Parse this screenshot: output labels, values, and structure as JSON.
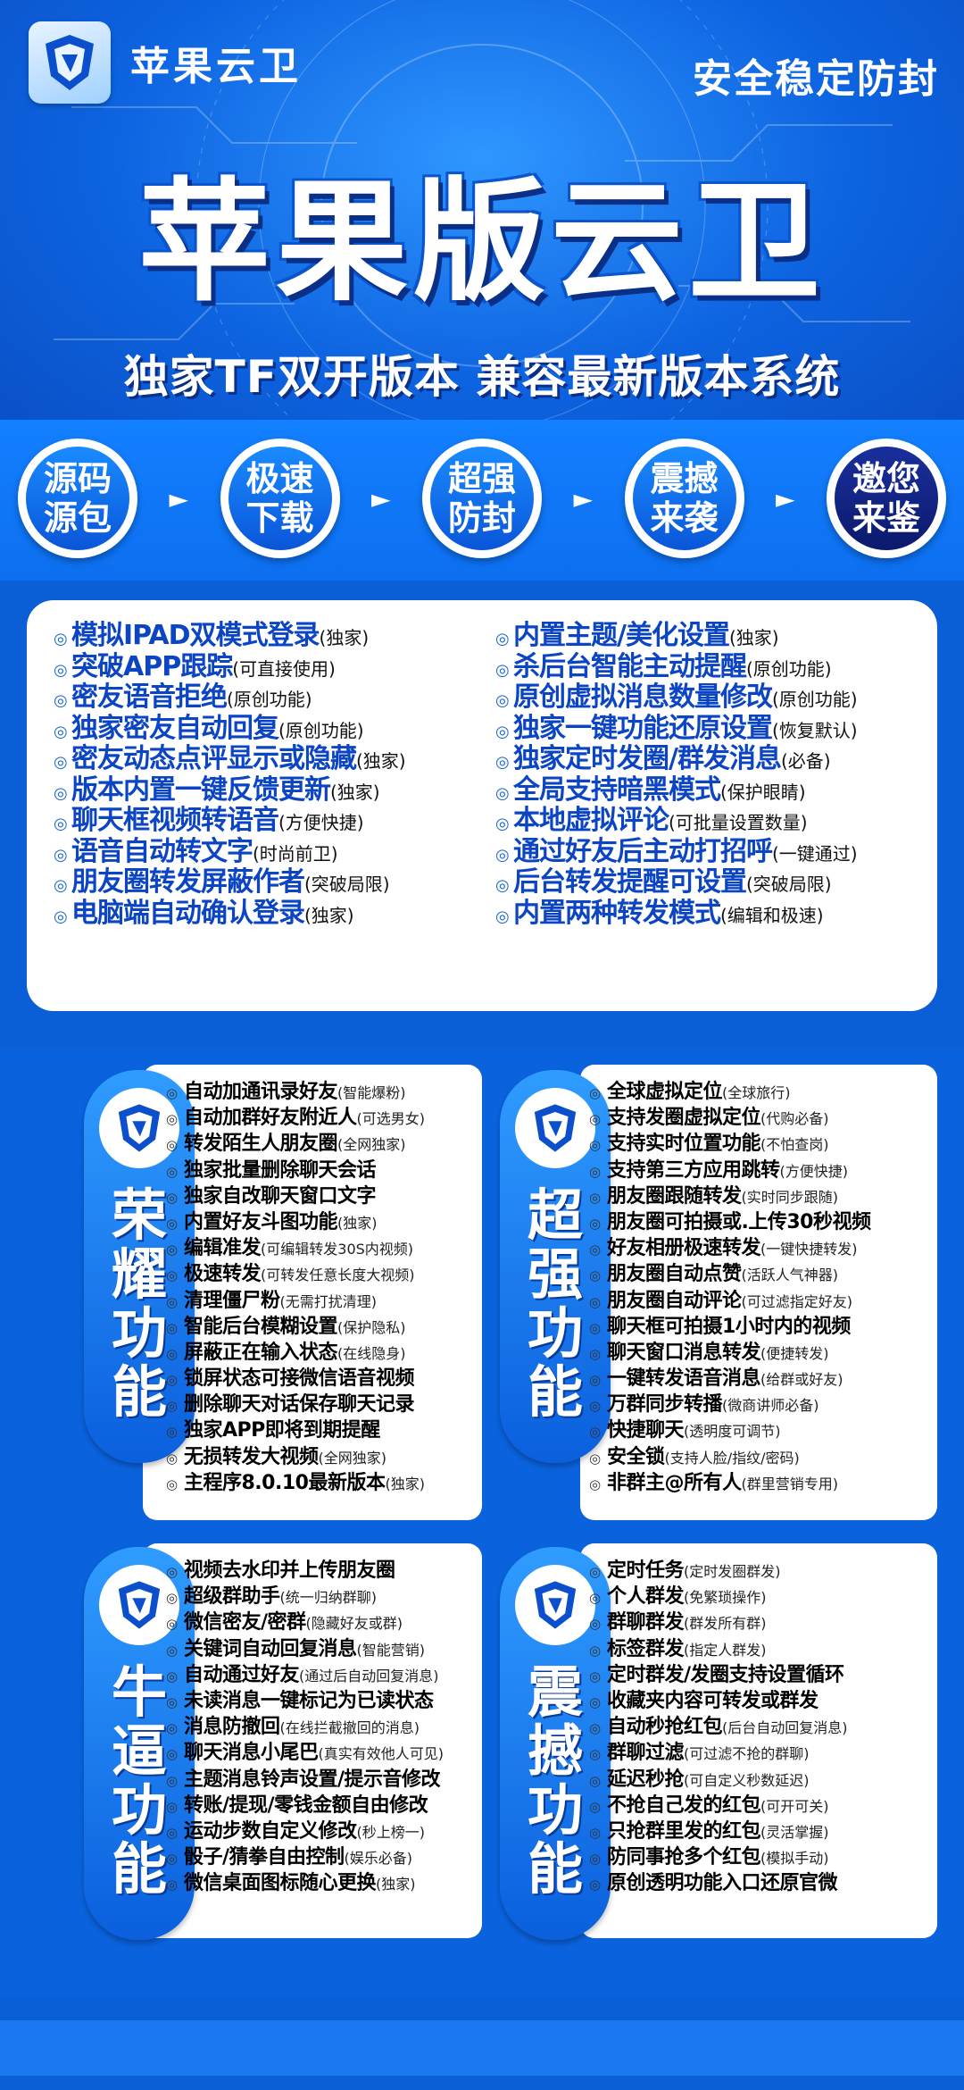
{
  "brand": {
    "name": "苹果云卫",
    "slogan": "安全稳定防封"
  },
  "hero": {
    "title": "苹果版云卫",
    "subtitle": "独家TF双开版本 兼容最新版本系统"
  },
  "badges": [
    {
      "line1": "源码",
      "line2": "源包"
    },
    {
      "line1": "极速",
      "line2": "下载"
    },
    {
      "line1": "超强",
      "line2": "防封"
    },
    {
      "line1": "震撼",
      "line2": "来袭"
    },
    {
      "line1": "邀您",
      "line2": "来鉴"
    }
  ],
  "panel": {
    "left": [
      {
        "t": "模拟IPAD双模式登录",
        "n": "(独家)"
      },
      {
        "t": "突破APP跟踪",
        "n": "(可直接使用)"
      },
      {
        "t": "密友语音拒绝",
        "n": "(原创功能)"
      },
      {
        "t": "独家密友自动回复",
        "n": "(原创功能)"
      },
      {
        "t": "密友动态点评显示或隐藏",
        "n": "(独家)"
      },
      {
        "t": "版本内置一键反馈更新",
        "n": "(独家)"
      },
      {
        "t": "聊天框视频转语音",
        "n": "(方便快捷)"
      },
      {
        "t": "语音自动转文字",
        "n": "(时尚前卫)"
      },
      {
        "t": "朋友圈转发屏蔽作者",
        "n": "(突破局限)"
      },
      {
        "t": "电脑端自动确认登录",
        "n": "(独家)"
      }
    ],
    "right": [
      {
        "t": "内置主题/美化设置",
        "n": "(独家)"
      },
      {
        "t": "杀后台智能主动提醒",
        "n": "(原创功能)"
      },
      {
        "t": "原创虚拟消息数量修改",
        "n": "(原创功能)"
      },
      {
        "t": "独家一键功能还原设置",
        "n": "(恢复默认)"
      },
      {
        "t": "独家定时发圈/群发消息",
        "n": "(必备)"
      },
      {
        "t": "全局支持暗黑模式",
        "n": "(保护眼睛)"
      },
      {
        "t": "本地虚拟评论",
        "n": "(可批量设置数量)"
      },
      {
        "t": "通过好友后主动打招呼",
        "n": "(一键通过)"
      },
      {
        "t": "后台转发提醒可设置",
        "n": "(突破局限)"
      },
      {
        "t": "内置两种转发模式",
        "n": "(编辑和极速)"
      }
    ]
  },
  "sections": {
    "rongyao": {
      "label": [
        "荣",
        "耀",
        "功",
        "能"
      ],
      "items": [
        {
          "t": "自动加通讯录好友",
          "n": "(智能爆粉)"
        },
        {
          "t": "自动加群好友附近人",
          "n": "(可选男女)"
        },
        {
          "t": "转发陌生人朋友圈",
          "n": "(全网独家)"
        },
        {
          "t": "独家批量删除聊天会话",
          "n": ""
        },
        {
          "t": "独家自改聊天窗口文字",
          "n": ""
        },
        {
          "t": "内置好友斗图功能",
          "n": "(独家)"
        },
        {
          "t": "编辑准发",
          "n": "(可编辑转发30S内视频)"
        },
        {
          "t": "极速转发",
          "n": "(可转发任意长度大视频)"
        },
        {
          "t": "清理僵尸粉",
          "n": "(无需打扰清理)"
        },
        {
          "t": "智能后台模糊设置",
          "n": "(保护隐私)"
        },
        {
          "t": "屏蔽正在输入状态",
          "n": "(在线隐身)"
        },
        {
          "t": "锁屏状态可接微信语音视频",
          "n": ""
        },
        {
          "t": "删除聊天对话保存聊天记录",
          "n": ""
        },
        {
          "t": "独家APP即将到期提醒",
          "n": ""
        },
        {
          "t": "无损转发大视频",
          "n": "(全网独家)"
        },
        {
          "t": "主程序8.0.10最新版本",
          "n": "(独家)"
        }
      ]
    },
    "chaoqiang": {
      "label": [
        "超",
        "强",
        "功",
        "能"
      ],
      "items": [
        {
          "t": "全球虚拟定位",
          "n": "(全球旅行)"
        },
        {
          "t": "支持发圈虚拟定位",
          "n": "(代购必备)"
        },
        {
          "t": "支持实时位置功能",
          "n": "(不怕查岗)"
        },
        {
          "t": "支持第三方应用跳转",
          "n": "(方便快捷)"
        },
        {
          "t": "朋友圈跟随转发",
          "n": "(实时同步跟随)"
        },
        {
          "t": "朋友圈可拍摄或.上传30秒视频",
          "n": ""
        },
        {
          "t": "好友相册极速转发",
          "n": "(一键快捷转发)"
        },
        {
          "t": "朋友圈自动点赞",
          "n": "(活跃人气神器)"
        },
        {
          "t": "朋友圈自动评论",
          "n": "(可过滤指定好友)"
        },
        {
          "t": "聊天框可拍摄1小时内的视频",
          "n": ""
        },
        {
          "t": "聊天窗口消息转发",
          "n": "(便捷转发)"
        },
        {
          "t": "一键转发语音消息",
          "n": "(给群或好友)"
        },
        {
          "t": "万群同步转播",
          "n": "(微商讲师必备)"
        },
        {
          "t": "快捷聊天",
          "n": "(透明度可调节)"
        },
        {
          "t": "安全锁",
          "n": "(支持人脸/指纹/密码)"
        },
        {
          "t": "非群主@所有人",
          "n": "(群里营销专用)"
        }
      ]
    },
    "niubi": {
      "label": [
        "牛",
        "逼",
        "功",
        "能"
      ],
      "items": [
        {
          "t": "视频去水印并上传朋友圈",
          "n": ""
        },
        {
          "t": "超级群助手",
          "n": "(统一归纳群聊)"
        },
        {
          "t": "微信密友/密群",
          "n": "(隐藏好友或群)"
        },
        {
          "t": "关键词自动回复消息",
          "n": "(智能营销)"
        },
        {
          "t": "自动通过好友",
          "n": "(通过后自动回复消息)"
        },
        {
          "t": "未读消息一键标记为已读状态",
          "n": ""
        },
        {
          "t": "消息防撤回",
          "n": "(在线拦截撤回的消息)"
        },
        {
          "t": "聊天消息小尾巴",
          "n": "(真实有效他人可见)"
        },
        {
          "t": "主题消息铃声设置/提示音修改",
          "n": ""
        },
        {
          "t": "转账/提现/零钱金额自由修改",
          "n": ""
        },
        {
          "t": "运动步数自定义修改",
          "n": "(秒上榜一)"
        },
        {
          "t": "骰子/猜拳自由控制",
          "n": "(娱乐必备)"
        },
        {
          "t": "微信桌面图标随心更换",
          "n": "(独家)"
        }
      ]
    },
    "zhenhan": {
      "label": [
        "震",
        "撼",
        "功",
        "能"
      ],
      "items": [
        {
          "t": "定时任务",
          "n": "(定时发圈群发)"
        },
        {
          "t": "个人群发",
          "n": "(免繁琐操作)"
        },
        {
          "t": "群聊群发",
          "n": "(群发所有群)"
        },
        {
          "t": "标签群发",
          "n": "(指定人群发)"
        },
        {
          "t": "定时群发/发圈支持设置循环",
          "n": ""
        },
        {
          "t": "收藏夹内容可转发或群发",
          "n": ""
        },
        {
          "t": "自动秒抢红包",
          "n": "(后台自动回复消息)"
        },
        {
          "t": "群聊过滤",
          "n": "(可过滤不抢的群聊)"
        },
        {
          "t": "延迟秒抢",
          "n": "(可自定义秒数延迟)"
        },
        {
          "t": "不抢自己发的红包",
          "n": "(可开可关)"
        },
        {
          "t": "只抢群里发的红包",
          "n": "(灵活掌握)"
        },
        {
          "t": "防同事抢多个红包",
          "n": "(模拟手动)"
        },
        {
          "t": "原创透明功能入口还原官微",
          "n": ""
        }
      ]
    }
  },
  "colors": {
    "primary": "#0a5fd6",
    "accent": "#0b45c4",
    "dark_badge": "#0b1a6c"
  },
  "icons": {
    "logo": "shield-logo-icon",
    "bullet": "bullet-dot-icon",
    "arrow": "arrow-right-icon"
  }
}
